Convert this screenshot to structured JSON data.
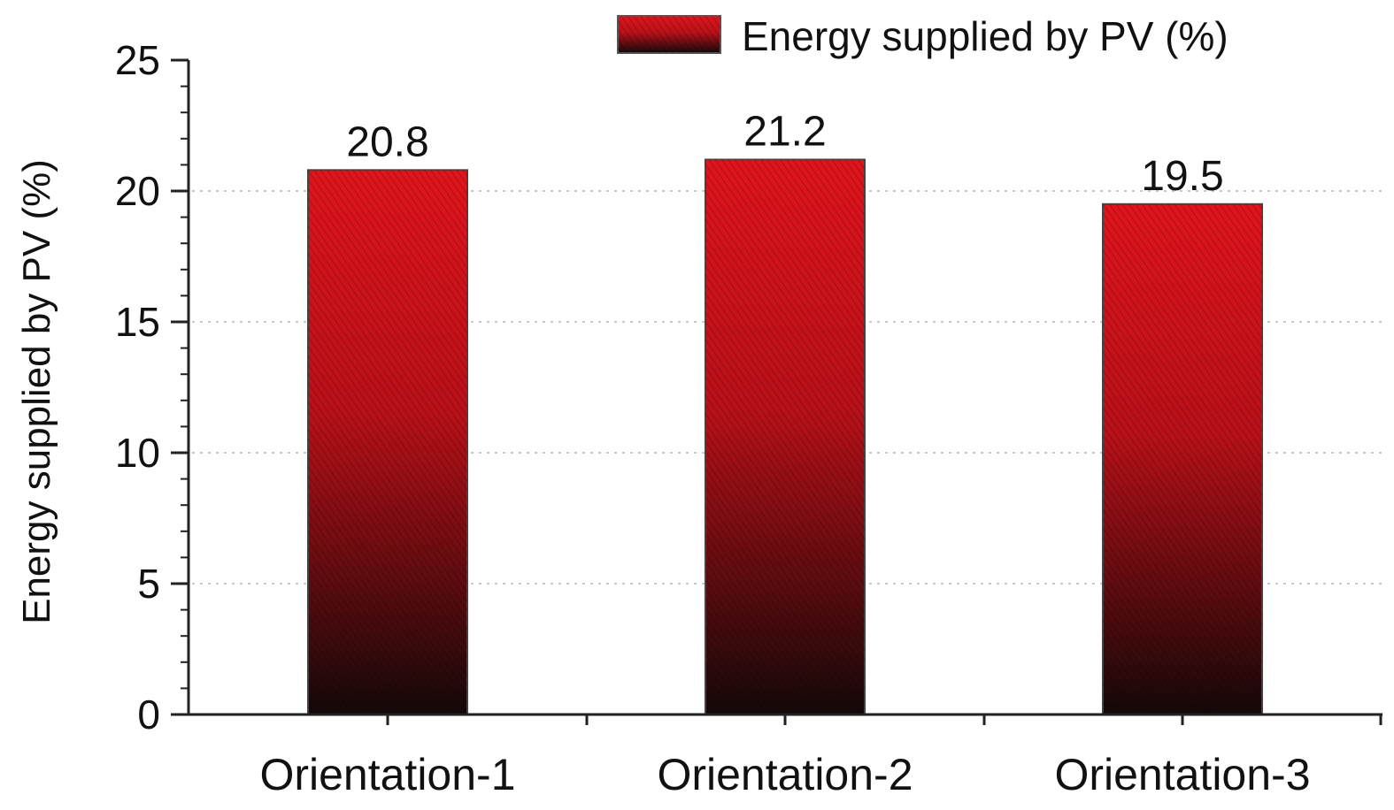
{
  "chart_data": {
    "type": "bar",
    "title": "",
    "categories": [
      "Orientation-1",
      "Orientation-2",
      "Orientation-3"
    ],
    "series": [
      {
        "name": "Energy supplied by PV (%)",
        "values": [
          20.8,
          21.2,
          19.5
        ],
        "color_top": "#e0141c",
        "color_bottom": "#140808"
      }
    ],
    "data_labels": [
      "20.8",
      "21.2",
      "19.5"
    ],
    "xlabel": "",
    "ylabel": "Energy supplied by PV (%)",
    "ylim": [
      0,
      25
    ],
    "yticks": [
      0,
      5,
      10,
      15,
      20,
      25
    ],
    "grid": true,
    "legend_position": "top-right"
  }
}
